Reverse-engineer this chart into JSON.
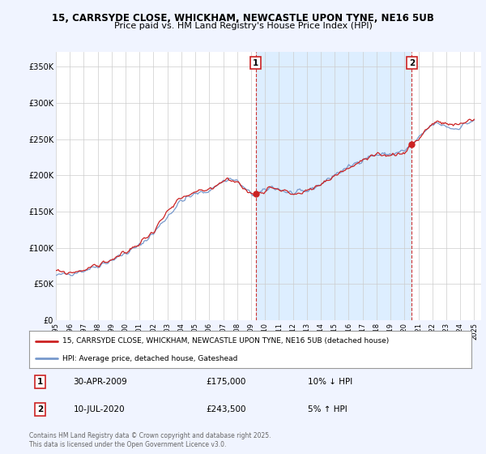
{
  "title1": "15, CARRSYDE CLOSE, WHICKHAM, NEWCASTLE UPON TYNE, NE16 5UB",
  "title2": "Price paid vs. HM Land Registry's House Price Index (HPI)",
  "background_color": "#f0f4ff",
  "plot_bg_color": "#ffffff",
  "grid_color": "#cccccc",
  "legend_line1": "15, CARRSYDE CLOSE, WHICKHAM, NEWCASTLE UPON TYNE, NE16 5UB (detached house)",
  "legend_line2": "HPI: Average price, detached house, Gateshead",
  "footnote": "Contains HM Land Registry data © Crown copyright and database right 2025.\nThis data is licensed under the Open Government Licence v3.0.",
  "marker1": {
    "label": "1",
    "date": "30-APR-2009",
    "price": "£175,000",
    "change": "10% ↓ HPI",
    "x_year": 2009.33
  },
  "marker2": {
    "label": "2",
    "date": "10-JUL-2020",
    "price": "£243,500",
    "change": "5% ↑ HPI",
    "x_year": 2020.53
  },
  "yticks": [
    0,
    50000,
    100000,
    150000,
    200000,
    250000,
    300000,
    350000
  ],
  "ytick_labels": [
    "£0",
    "£50K",
    "£100K",
    "£150K",
    "£200K",
    "£250K",
    "£300K",
    "£350K"
  ],
  "xlim": [
    1995,
    2025.5
  ],
  "ylim": [
    0,
    370000
  ],
  "hpi_color": "#7799cc",
  "price_color": "#cc2222",
  "dashed_color": "#cc3333",
  "shade_color": "#ddeeff",
  "hpi_seed": 42,
  "price_seed": 99,
  "base_hpi": [
    [
      1995.0,
      61000
    ],
    [
      1996.0,
      64500
    ],
    [
      1997.0,
      68500
    ],
    [
      1998.0,
      75000
    ],
    [
      1999.0,
      83000
    ],
    [
      2000.0,
      92000
    ],
    [
      2001.0,
      103000
    ],
    [
      2002.0,
      120000
    ],
    [
      2003.0,
      143000
    ],
    [
      2004.0,
      165000
    ],
    [
      2005.0,
      174000
    ],
    [
      2006.0,
      179000
    ],
    [
      2007.0,
      192000
    ],
    [
      2007.5,
      195000
    ],
    [
      2008.0,
      192000
    ],
    [
      2008.5,
      182000
    ],
    [
      2009.0,
      174000
    ],
    [
      2009.5,
      174000
    ],
    [
      2010.0,
      179000
    ],
    [
      2010.5,
      184000
    ],
    [
      2011.0,
      181000
    ],
    [
      2011.5,
      177000
    ],
    [
      2012.0,
      175000
    ],
    [
      2012.5,
      176000
    ],
    [
      2013.0,
      178000
    ],
    [
      2013.5,
      183000
    ],
    [
      2014.0,
      188000
    ],
    [
      2014.5,
      194000
    ],
    [
      2015.0,
      201000
    ],
    [
      2015.5,
      206000
    ],
    [
      2016.0,
      211000
    ],
    [
      2016.5,
      217000
    ],
    [
      2017.0,
      222000
    ],
    [
      2017.5,
      226000
    ],
    [
      2018.0,
      228000
    ],
    [
      2018.5,
      229000
    ],
    [
      2019.0,
      229000
    ],
    [
      2019.5,
      231000
    ],
    [
      2020.0,
      234000
    ],
    [
      2020.5,
      241000
    ],
    [
      2021.0,
      250000
    ],
    [
      2021.5,
      261000
    ],
    [
      2022.0,
      270000
    ],
    [
      2022.5,
      271000
    ],
    [
      2023.0,
      268000
    ],
    [
      2023.5,
      264000
    ],
    [
      2024.0,
      267000
    ],
    [
      2024.5,
      272000
    ],
    [
      2025.0,
      276000
    ]
  ],
  "base_price": [
    [
      1995.0,
      67000
    ],
    [
      1996.0,
      65000
    ],
    [
      1997.0,
      69500
    ],
    [
      1998.0,
      76000
    ],
    [
      1999.0,
      83500
    ],
    [
      2000.0,
      93000
    ],
    [
      2001.0,
      106000
    ],
    [
      2002.0,
      123000
    ],
    [
      2003.0,
      149000
    ],
    [
      2004.0,
      168000
    ],
    [
      2005.0,
      176000
    ],
    [
      2006.0,
      180000
    ],
    [
      2007.0,
      193000
    ],
    [
      2007.5,
      195000
    ],
    [
      2008.0,
      191000
    ],
    [
      2008.5,
      181000
    ],
    [
      2009.0,
      174000
    ],
    [
      2009.33,
      175000
    ],
    [
      2009.5,
      175500
    ],
    [
      2010.0,
      180000
    ],
    [
      2010.5,
      184500
    ],
    [
      2011.0,
      182000
    ],
    [
      2011.5,
      177000
    ],
    [
      2012.0,
      174000
    ],
    [
      2012.5,
      175500
    ],
    [
      2013.0,
      177500
    ],
    [
      2013.5,
      182000
    ],
    [
      2014.0,
      187000
    ],
    [
      2014.5,
      193000
    ],
    [
      2015.0,
      200000
    ],
    [
      2015.5,
      205000
    ],
    [
      2016.0,
      210000
    ],
    [
      2016.5,
      215000
    ],
    [
      2017.0,
      220000
    ],
    [
      2017.5,
      224000
    ],
    [
      2018.0,
      226000
    ],
    [
      2018.5,
      228000
    ],
    [
      2019.0,
      228000
    ],
    [
      2019.5,
      229000
    ],
    [
      2020.0,
      232000
    ],
    [
      2020.53,
      243500
    ],
    [
      2021.0,
      250000
    ],
    [
      2021.5,
      262000
    ],
    [
      2022.0,
      271000
    ],
    [
      2022.5,
      273000
    ],
    [
      2023.0,
      271000
    ],
    [
      2023.5,
      268000
    ],
    [
      2024.0,
      271000
    ],
    [
      2024.5,
      275000
    ],
    [
      2025.0,
      278000
    ]
  ]
}
